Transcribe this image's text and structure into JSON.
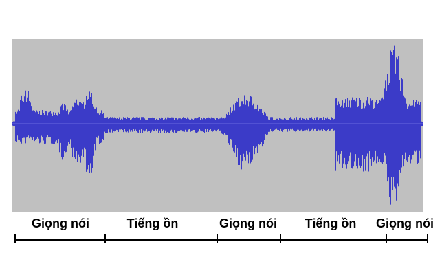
{
  "segments": [
    {
      "label": "Giọng nói",
      "kind": "speech"
    },
    {
      "label": "Tiếng ồn",
      "kind": "noise"
    },
    {
      "label": "Giọng nói",
      "kind": "speech"
    },
    {
      "label": "Tiếng ồn",
      "kind": "noise"
    },
    {
      "label": "Giọng nói",
      "kind": "speech"
    }
  ],
  "colors": {
    "waveform": "#3b3bc8",
    "panel_background": "#c0c0c0",
    "timeline": "#000000"
  }
}
